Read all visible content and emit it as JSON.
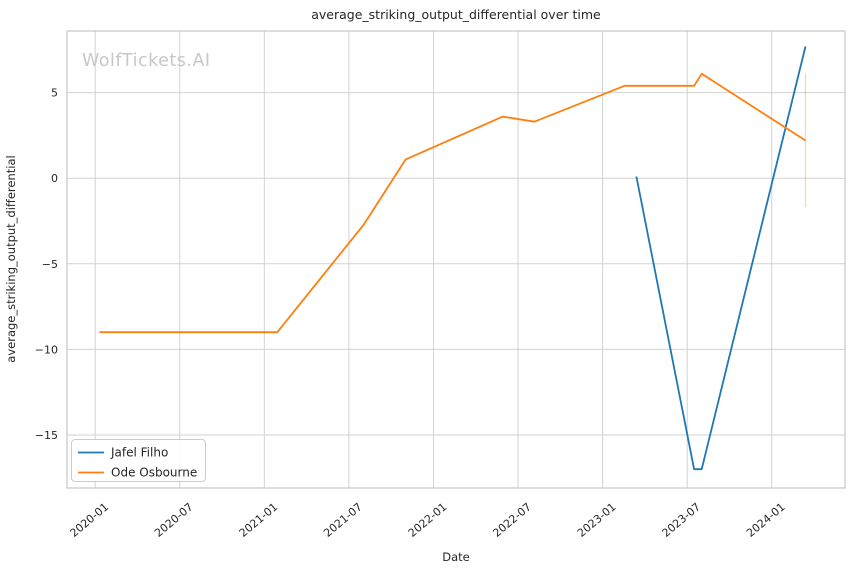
{
  "watermark": "WolfTickets.AI",
  "chart_data": {
    "type": "line",
    "title": "average_striking_output_differential over time",
    "xlabel": "Date",
    "ylabel": "average_striking_output_differential",
    "grid": true,
    "legend_position": "lower left",
    "x_ticklabels": [
      "2020-01",
      "2020-07",
      "2021-01",
      "2021-07",
      "2022-01",
      "2022-07",
      "2023-01",
      "2023-07",
      "2024-01"
    ],
    "y_ticks": [
      5,
      0,
      -5,
      -10,
      -15
    ],
    "xlim_dates": [
      "2019-11-01",
      "2024-06-07"
    ],
    "ylim": [
      -18.1,
      8.6
    ],
    "series": [
      {
        "name": "Jafel Filho",
        "color": "#1f77b4",
        "points": [
          {
            "date": "2023-03-13",
            "value": 0.1
          },
          {
            "date": "2023-07-16",
            "value": -17.0
          },
          {
            "date": "2023-08-02",
            "value": -17.0
          },
          {
            "date": "2024-03-13",
            "value": 7.7
          }
        ]
      },
      {
        "name": "Ode Osbourne",
        "color": "#ff7f0e",
        "points": [
          {
            "date": "2020-01-10",
            "value": -9.0
          },
          {
            "date": "2021-01-29",
            "value": -9.0
          },
          {
            "date": "2021-08-03",
            "value": -2.7
          },
          {
            "date": "2021-11-02",
            "value": 1.1
          },
          {
            "date": "2022-05-29",
            "value": 3.6
          },
          {
            "date": "2022-08-06",
            "value": 3.3
          },
          {
            "date": "2023-02-18",
            "value": 5.4
          },
          {
            "date": "2023-07-16",
            "value": 5.4
          },
          {
            "date": "2023-08-02",
            "value": 6.1
          },
          {
            "date": "2024-03-13",
            "value": 2.2
          }
        ],
        "errorbar": {
          "date": "2024-03-13",
          "low": -1.7,
          "high": 6.1,
          "color": "rgba(255,127,14,0.35)"
        }
      }
    ]
  }
}
